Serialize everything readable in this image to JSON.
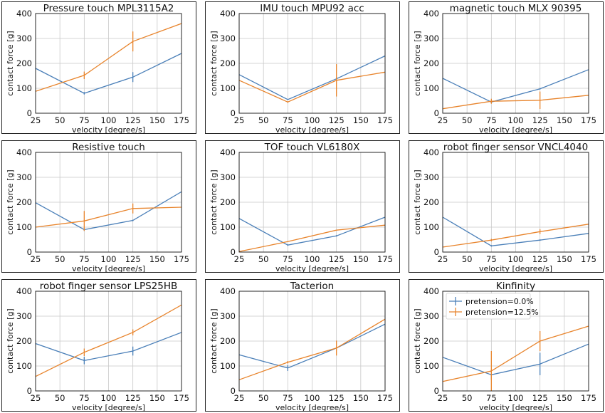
{
  "colors": {
    "series0": "#4a7fb8",
    "series1": "#e8842c"
  },
  "legend": [
    "pretension=0.0%",
    "pretension=12.5%"
  ],
  "chart_data": [
    {
      "type": "line",
      "title": "Pressure touch MPL3115A2",
      "xlabel": "velocity [degree/s]",
      "ylabel": "contact force [g]",
      "x": [
        25,
        75,
        125,
        175
      ],
      "xlim": [
        25,
        175
      ],
      "ylim": [
        0,
        400
      ],
      "xticks": [
        25,
        50,
        75,
        100,
        125,
        150,
        175
      ],
      "yticks": [
        0,
        100,
        200,
        300,
        400
      ],
      "grid": true,
      "series": [
        {
          "name": "pretension=0.0%",
          "values": [
            180,
            80,
            145,
            240
          ],
          "err": [
            0,
            5,
            20,
            0
          ]
        },
        {
          "name": "pretension=12.5%",
          "values": [
            88,
            152,
            288,
            360
          ],
          "err": [
            0,
            15,
            40,
            0
          ]
        }
      ]
    },
    {
      "type": "line",
      "title": "IMU touch MPU92 acc",
      "xlabel": "velocity [degree/s]",
      "ylabel": "contact force [g]",
      "x": [
        25,
        75,
        125,
        175
      ],
      "xlim": [
        25,
        175
      ],
      "ylim": [
        0,
        400
      ],
      "xticks": [
        25,
        50,
        75,
        100,
        125,
        150,
        175
      ],
      "yticks": [
        0,
        100,
        200,
        300,
        400
      ],
      "grid": true,
      "series": [
        {
          "name": "pretension=0.0%",
          "values": [
            155,
            55,
            138,
            230
          ],
          "err": [
            0,
            0,
            5,
            0
          ]
        },
        {
          "name": "pretension=12.5%",
          "values": [
            132,
            45,
            132,
            165
          ],
          "err": [
            0,
            3,
            65,
            0
          ]
        }
      ]
    },
    {
      "type": "line",
      "title": "magnetic touch MLX 90395",
      "xlabel": "velocity [degree/s]",
      "ylabel": "contact force [g]",
      "x": [
        25,
        75,
        125,
        175
      ],
      "xlim": [
        25,
        175
      ],
      "ylim": [
        0,
        400
      ],
      "xticks": [
        25,
        50,
        75,
        100,
        125,
        150,
        175
      ],
      "yticks": [
        0,
        100,
        200,
        300,
        400
      ],
      "grid": true,
      "series": [
        {
          "name": "pretension=0.0%",
          "values": [
            140,
            45,
            98,
            175
          ],
          "err": [
            0,
            5,
            3,
            0
          ]
        },
        {
          "name": "pretension=12.5%",
          "values": [
            18,
            48,
            52,
            72
          ],
          "err": [
            0,
            10,
            35,
            0
          ]
        }
      ]
    },
    {
      "type": "line",
      "title": "Resistive touch",
      "xlabel": "velocity [degree/s]",
      "ylabel": "contact force [g]",
      "x": [
        25,
        75,
        125,
        175
      ],
      "xlim": [
        25,
        175
      ],
      "ylim": [
        0,
        400
      ],
      "xticks": [
        25,
        50,
        75,
        100,
        125,
        150,
        175
      ],
      "yticks": [
        0,
        100,
        200,
        300,
        400
      ],
      "grid": true,
      "series": [
        {
          "name": "pretension=0.0%",
          "values": [
            198,
            90,
            127,
            242
          ],
          "err": [
            0,
            5,
            3,
            0
          ]
        },
        {
          "name": "pretension=12.5%",
          "values": [
            100,
            125,
            175,
            180
          ],
          "err": [
            0,
            40,
            20,
            0
          ]
        }
      ]
    },
    {
      "type": "line",
      "title": "TOF touch VL6180X",
      "xlabel": "velocity [degree/s]",
      "ylabel": "contact force [g]",
      "x": [
        25,
        75,
        125,
        175
      ],
      "xlim": [
        25,
        175
      ],
      "ylim": [
        0,
        400
      ],
      "xticks": [
        25,
        50,
        75,
        100,
        125,
        150,
        175
      ],
      "yticks": [
        0,
        100,
        200,
        300,
        400
      ],
      "grid": true,
      "series": [
        {
          "name": "pretension=0.0%",
          "values": [
            135,
            28,
            65,
            140
          ],
          "err": [
            0,
            3,
            3,
            0
          ]
        },
        {
          "name": "pretension=12.5%",
          "values": [
            2,
            42,
            88,
            108
          ],
          "err": [
            0,
            0,
            0,
            0
          ]
        }
      ]
    },
    {
      "type": "line",
      "title": "robot finger sensor VNCL4040",
      "xlabel": "velocity [degree/s]",
      "ylabel": "contact force [g]",
      "x": [
        25,
        75,
        125,
        175
      ],
      "xlim": [
        25,
        175
      ],
      "ylim": [
        0,
        400
      ],
      "xticks": [
        25,
        50,
        75,
        100,
        125,
        150,
        175
      ],
      "yticks": [
        0,
        100,
        200,
        300,
        400
      ],
      "grid": true,
      "series": [
        {
          "name": "pretension=0.0%",
          "values": [
            140,
            25,
            48,
            75
          ],
          "err": [
            0,
            3,
            3,
            0
          ]
        },
        {
          "name": "pretension=12.5%",
          "values": [
            20,
            48,
            82,
            112
          ],
          "err": [
            0,
            5,
            10,
            0
          ]
        }
      ]
    },
    {
      "type": "line",
      "title": "robot finger sensor LPS25HB",
      "xlabel": "velocity [degree/s]",
      "ylabel": "contact force [g]",
      "x": [
        25,
        75,
        125,
        175
      ],
      "xlim": [
        25,
        175
      ],
      "ylim": [
        0,
        400
      ],
      "xticks": [
        25,
        50,
        75,
        100,
        125,
        150,
        175
      ],
      "yticks": [
        0,
        100,
        200,
        300,
        400
      ],
      "grid": true,
      "series": [
        {
          "name": "pretension=0.0%",
          "values": [
            190,
            122,
            160,
            235
          ],
          "err": [
            0,
            15,
            18,
            0
          ]
        },
        {
          "name": "pretension=12.5%",
          "values": [
            58,
            155,
            235,
            345
          ],
          "err": [
            0,
            15,
            12,
            0
          ]
        }
      ]
    },
    {
      "type": "line",
      "title": "Tacterion",
      "xlabel": "velocity [degree/s]",
      "ylabel": "contact force [g]",
      "x": [
        25,
        75,
        125,
        175
      ],
      "xlim": [
        25,
        175
      ],
      "ylim": [
        0,
        400
      ],
      "xticks": [
        25,
        50,
        75,
        100,
        125,
        150,
        175
      ],
      "yticks": [
        0,
        100,
        200,
        300,
        400
      ],
      "grid": true,
      "series": [
        {
          "name": "pretension=0.0%",
          "values": [
            145,
            92,
            172,
            268
          ],
          "err": [
            0,
            12,
            5,
            0
          ]
        },
        {
          "name": "pretension=12.5%",
          "values": [
            45,
            115,
            172,
            288
          ],
          "err": [
            0,
            5,
            30,
            0
          ]
        }
      ]
    },
    {
      "type": "line",
      "title": "Kinfinity",
      "xlabel": "velocity [degree/s]",
      "ylabel": "contact force [g]",
      "x": [
        25,
        75,
        125,
        175
      ],
      "xlim": [
        25,
        175
      ],
      "ylim": [
        0,
        400
      ],
      "xticks": [
        25,
        50,
        75,
        100,
        125,
        150,
        175
      ],
      "yticks": [
        0,
        100,
        200,
        300,
        400
      ],
      "grid": true,
      "legend": "top-left",
      "series": [
        {
          "name": "pretension=0.0%",
          "values": [
            135,
            65,
            108,
            188
          ],
          "err": [
            0,
            20,
            45,
            0
          ]
        },
        {
          "name": "pretension=12.5%",
          "values": [
            38,
            80,
            200,
            260
          ],
          "err": [
            0,
            80,
            40,
            0
          ]
        }
      ]
    }
  ]
}
